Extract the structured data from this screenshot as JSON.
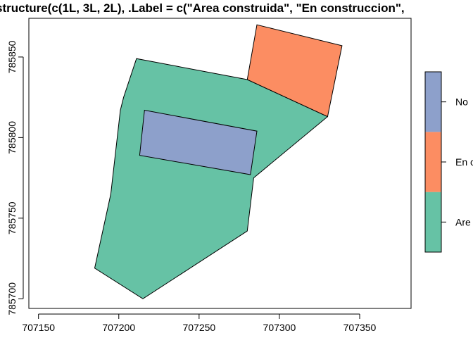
{
  "chart_data": {
    "type": "map",
    "title": "structure(c(1L, 3L, 2L), .Label = c(\"Area construida\", \"En construccion\", ",
    "xlabel": "",
    "ylabel": "",
    "xlim": [
      707144,
      707382
    ],
    "ylim": [
      785694,
      785874
    ],
    "x_ticks": [
      707150,
      707200,
      707250,
      707300,
      707350
    ],
    "x_tick_labels": [
      "707150",
      "707200",
      "707250",
      "707300",
      "707350"
    ],
    "y_ticks": [
      785700,
      785750,
      785800,
      785850
    ],
    "y_tick_labels": [
      "785700",
      "785750",
      "785800",
      "785850"
    ],
    "grid": false,
    "polygons": [
      {
        "category": "Area construida",
        "color": "#66c2a5",
        "points": [
          [
            707211,
            785849
          ],
          [
            707203,
            785825
          ],
          [
            707201,
            785817
          ],
          [
            707195,
            785765
          ],
          [
            707185,
            785719
          ],
          [
            707215,
            785700
          ],
          [
            707280,
            785742
          ],
          [
            707284,
            785775
          ],
          [
            707330,
            785813
          ],
          [
            707280,
            785836
          ]
        ]
      },
      {
        "category": "En construccion",
        "color": "#fc8d62",
        "points": [
          [
            707286,
            785870
          ],
          [
            707339,
            785857
          ],
          [
            707330,
            785813
          ],
          [
            707280,
            785836
          ]
        ]
      },
      {
        "category": "No construido",
        "color": "#8da0cb",
        "points": [
          [
            707216,
            785817
          ],
          [
            707286,
            785804
          ],
          [
            707282,
            785777
          ],
          [
            707213,
            785789
          ]
        ]
      }
    ],
    "legend": {
      "position": "right",
      "entries": [
        {
          "label": "Area construida",
          "color": "#66c2a5"
        },
        {
          "label": "En construccion",
          "color": "#fc8d62"
        },
        {
          "label": "No construido",
          "color": "#8da0cb"
        }
      ],
      "visible_labels": [
        "Are",
        "En c",
        "No"
      ]
    }
  }
}
